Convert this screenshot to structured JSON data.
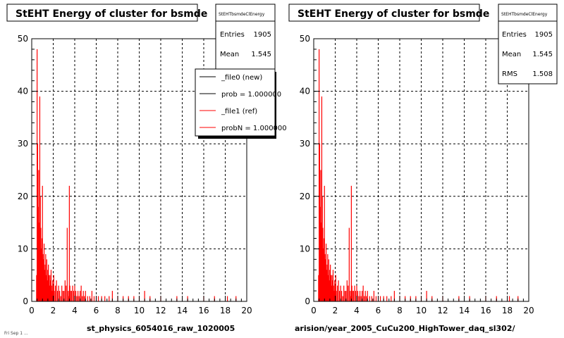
{
  "colors": {
    "hist": "#ff0000",
    "background": "#ffffff",
    "legend_new": "#000000",
    "legend_ref": "#ff0000"
  },
  "chart_data": [
    {
      "type": "bar",
      "title": "StEHT Energy of cluster for bsmde",
      "xlim": [
        0,
        20
      ],
      "ylim": [
        0,
        50
      ],
      "xticks": [
        "0",
        "2",
        "4",
        "6",
        "8",
        "10",
        "12",
        "14",
        "16",
        "18",
        "20"
      ],
      "yticks": [
        "0",
        "10",
        "20",
        "30",
        "40",
        "50"
      ],
      "grid": true,
      "stats": {
        "title": "StEHTbsmdeClEnergy",
        "rows": [
          {
            "label": "Entries",
            "value": "1905"
          },
          {
            "label": "Mean",
            "value": "1.545"
          }
        ]
      },
      "legend": {
        "placement": "top-right",
        "entries": [
          "_file0 (new)",
          "prob = 1.000000",
          "_file1 (ref)",
          "probN = 1.000000"
        ]
      },
      "footer": "st_physics_6054016_raw_1020005",
      "corner_text": "Fri Sep 1 ..."
    },
    {
      "type": "bar",
      "title": "StEHT Energy of cluster for bsmde",
      "xlim": [
        0,
        20
      ],
      "ylim": [
        0,
        50
      ],
      "xticks": [
        "0",
        "2",
        "4",
        "6",
        "8",
        "10",
        "12",
        "14",
        "16",
        "18",
        "20"
      ],
      "yticks": [
        "0",
        "10",
        "20",
        "30",
        "40",
        "50"
      ],
      "grid": true,
      "stats": {
        "title": "StEHTbsmdeClEnergy",
        "rows": [
          {
            "label": "Entries",
            "value": "1905"
          },
          {
            "label": "Mean",
            "value": "1.545"
          },
          {
            "label": "RMS",
            "value": "1.508"
          }
        ]
      },
      "footer": "arision/year_2005_CuCu200_HighTower_daq_sl302/"
    }
  ],
  "histogram": {
    "x": [
      0.45,
      0.5,
      0.55,
      0.6,
      0.65,
      0.7,
      0.75,
      0.8,
      0.85,
      0.9,
      0.95,
      1.0,
      1.05,
      1.1,
      1.15,
      1.2,
      1.25,
      1.3,
      1.35,
      1.4,
      1.45,
      1.5,
      1.55,
      1.6,
      1.65,
      1.7,
      1.75,
      1.8,
      1.85,
      1.9,
      1.95,
      2.0,
      2.05,
      2.1,
      2.2,
      2.3,
      2.4,
      2.5,
      2.6,
      2.7,
      2.8,
      2.9,
      3.0,
      3.1,
      3.2,
      3.3,
      3.4,
      3.45,
      3.5,
      3.55,
      3.6,
      3.7,
      3.8,
      3.9,
      4.0,
      4.1,
      4.2,
      4.3,
      4.4,
      4.5,
      4.6,
      4.7,
      4.8,
      4.9,
      5.0,
      5.2,
      5.4,
      5.6,
      5.8,
      6.0,
      6.2,
      6.5,
      6.8,
      7.2,
      7.5,
      8.0,
      8.5,
      9.0,
      9.5,
      10.0,
      10.5,
      11.0,
      12.0,
      13.5,
      14.5,
      16.0,
      17.0,
      18.2,
      19.0
    ],
    "y": [
      5,
      48,
      30,
      18,
      25,
      15,
      39,
      20,
      14,
      10,
      12,
      22,
      9,
      8,
      11,
      6,
      7,
      9,
      5,
      8,
      4,
      6,
      7,
      5,
      3,
      5,
      4,
      6,
      3,
      2,
      4,
      3,
      5,
      2,
      3,
      4,
      2,
      3,
      2,
      1,
      3,
      2,
      2,
      4,
      3,
      14,
      2,
      1,
      22,
      3,
      2,
      2,
      3,
      2,
      3,
      2,
      1,
      2,
      1,
      2,
      3,
      1,
      2,
      1,
      2,
      1,
      1,
      2,
      1,
      1,
      1,
      1,
      1,
      1,
      2,
      1,
      1,
      1,
      1,
      1,
      2,
      1,
      1,
      1,
      1,
      1,
      1,
      1,
      1
    ]
  }
}
